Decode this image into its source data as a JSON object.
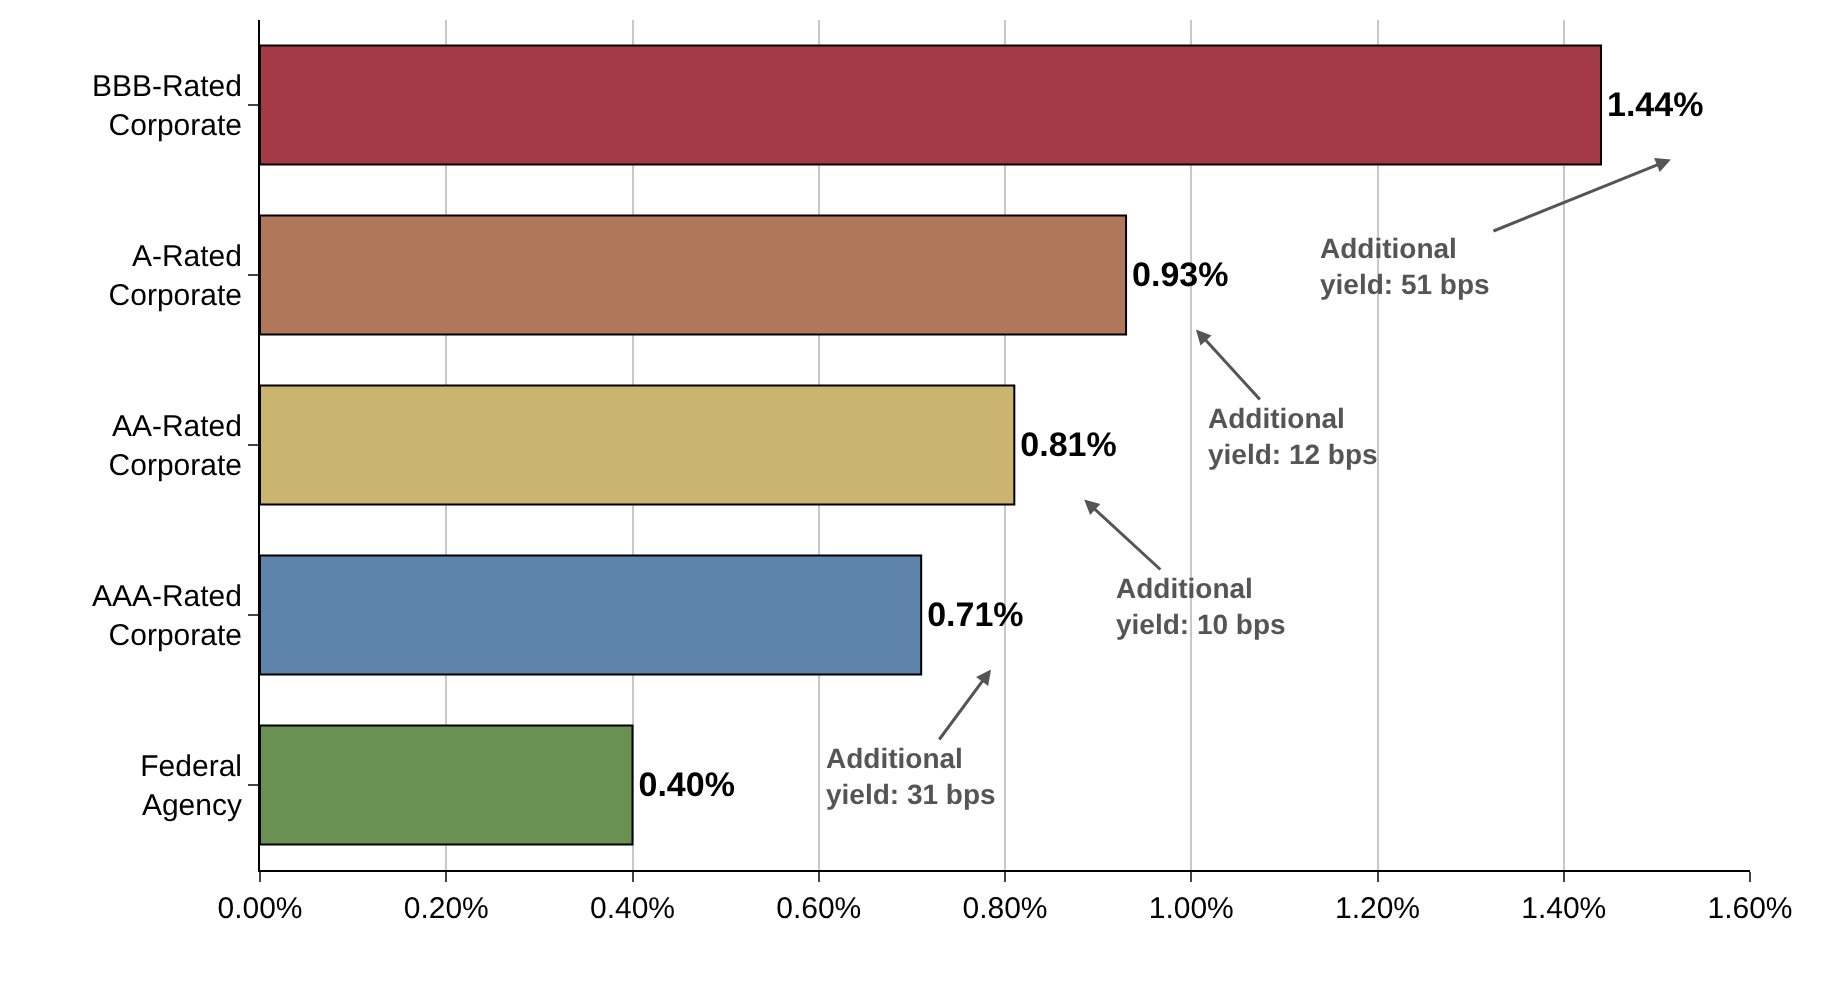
{
  "chart_data": {
    "type": "bar",
    "orientation": "horizontal",
    "categories": [
      "BBB-Rated\nCorporate",
      "A-Rated\nCorporate",
      "AA-Rated\nCorporate",
      "AAA-Rated\nCorporate",
      "Federal\nAgency"
    ],
    "values": [
      1.44,
      0.93,
      0.81,
      0.71,
      0.4
    ],
    "colors": [
      "#a33a45",
      "#b0775a",
      "#cbb370",
      "#5f84ab",
      "#6b9152"
    ],
    "value_labels": [
      "1.44%",
      "0.93%",
      "0.81%",
      "0.71%",
      "0.40%"
    ],
    "xlim": [
      0,
      1.6
    ],
    "xticks": [
      {
        "value": 0,
        "label": "0.00%"
      },
      {
        "value": 0.2,
        "label": "0.20%"
      },
      {
        "value": 0.4,
        "label": "0.40%"
      },
      {
        "value": 0.6,
        "label": "0.60%"
      },
      {
        "value": 0.8,
        "label": "0.80%"
      },
      {
        "value": 1.0,
        "label": "1.00%"
      },
      {
        "value": 1.2,
        "label": "1.20%"
      },
      {
        "value": 1.4,
        "label": "1.40%"
      },
      {
        "value": 1.6,
        "label": "1.60%"
      }
    ],
    "grid": "x",
    "annotations": [
      "Additional\nyield: 51 bps",
      "Additional\nyield: 12 bps",
      "Additional\nyield: 10 bps",
      "Additional\nyield: 31 bps"
    ]
  }
}
